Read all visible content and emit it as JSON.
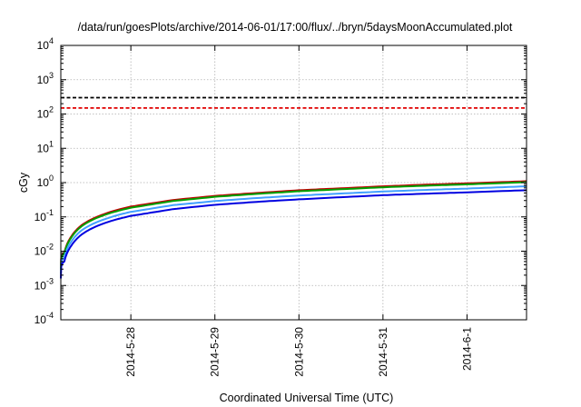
{
  "chart_data": {
    "type": "line",
    "title": "/data/run/goesPlots/archive/2014-06-01/17:00/flux/../bryn/5daysMoonAccumulated.plot",
    "xlabel": "Coordinated Universal Time (UTC)",
    "ylabel": "cGy",
    "y_scale": "log",
    "ylim": [
      0.0001,
      10000
    ],
    "y_ticks": [
      {
        "value": 0.0001,
        "base": "10",
        "exp": "-4"
      },
      {
        "value": 0.001,
        "base": "10",
        "exp": "-3"
      },
      {
        "value": 0.01,
        "base": "10",
        "exp": "-2"
      },
      {
        "value": 0.1,
        "base": "10",
        "exp": "-1"
      },
      {
        "value": 1,
        "base": "10",
        "exp": "0"
      },
      {
        "value": 10,
        "base": "10",
        "exp": "1"
      },
      {
        "value": 100,
        "base": "10",
        "exp": "2"
      },
      {
        "value": 1000,
        "base": "10",
        "exp": "3"
      },
      {
        "value": 10000,
        "base": "10",
        "exp": "4"
      }
    ],
    "xlim": [
      "2014-05-27 04:00",
      "2014-06-01 17:00"
    ],
    "x_ticks": [
      {
        "value": "2014-05-28 00:00",
        "label": "2014-5-28"
      },
      {
        "value": "2014-05-29 00:00",
        "label": "2014-5-29"
      },
      {
        "value": "2014-05-30 00:00",
        "label": "2014-5-30"
      },
      {
        "value": "2014-05-31 00:00",
        "label": "2014-5-31"
      },
      {
        "value": "2014-06-01 00:00",
        "label": "2014-6-1"
      }
    ],
    "grid": true,
    "thresholds": [
      {
        "value": 300,
        "color": "#000000",
        "style": "dashed"
      },
      {
        "value": 150,
        "color": "#e00000",
        "style": "dashed"
      }
    ],
    "series": [
      {
        "color": "#c00000",
        "x": [
          "2014-05-27 04:00",
          "2014-05-27 05:00",
          "2014-05-27 07:00",
          "2014-05-27 10:00",
          "2014-05-27 16:00",
          "2014-05-28 00:00",
          "2014-05-28 12:00",
          "2014-05-29 00:00",
          "2014-05-29 12:00",
          "2014-05-30 00:00",
          "2014-05-30 12:00",
          "2014-05-31 00:00",
          "2014-05-31 12:00",
          "2014-06-01 00:00",
          "2014-06-01 17:00"
        ],
        "values": [
          0.003,
          0.009,
          0.027,
          0.058,
          0.117,
          0.2,
          0.31,
          0.41,
          0.5,
          0.6,
          0.68,
          0.78,
          0.87,
          0.95,
          1.1
        ]
      },
      {
        "color": "#00a000",
        "x": [
          "2014-05-27 04:00",
          "2014-05-27 05:00",
          "2014-05-27 07:00",
          "2014-05-27 10:00",
          "2014-05-27 16:00",
          "2014-05-28 00:00",
          "2014-05-28 12:00",
          "2014-05-29 00:00",
          "2014-05-29 12:00",
          "2014-05-30 00:00",
          "2014-05-30 12:00",
          "2014-05-31 00:00",
          "2014-05-31 12:00",
          "2014-06-01 00:00",
          "2014-06-01 17:00"
        ],
        "values": [
          0.0028,
          0.0085,
          0.025,
          0.054,
          0.109,
          0.185,
          0.29,
          0.385,
          0.47,
          0.56,
          0.64,
          0.73,
          0.81,
          0.89,
          1.03
        ]
      },
      {
        "color": "#40a0ff",
        "x": [
          "2014-05-27 04:00",
          "2014-05-27 05:00",
          "2014-05-27 07:00",
          "2014-05-27 10:00",
          "2014-05-27 16:00",
          "2014-05-28 00:00",
          "2014-05-28 12:00",
          "2014-05-29 00:00",
          "2014-05-29 12:00",
          "2014-05-30 00:00",
          "2014-05-30 12:00",
          "2014-05-31 00:00",
          "2014-05-31 12:00",
          "2014-06-01 00:00",
          "2014-06-01 17:00"
        ],
        "values": [
          0.0022,
          0.0065,
          0.019,
          0.041,
          0.082,
          0.14,
          0.22,
          0.29,
          0.355,
          0.42,
          0.48,
          0.55,
          0.61,
          0.67,
          0.78
        ]
      },
      {
        "color": "#0000e0",
        "x": [
          "2014-05-27 04:00",
          "2014-05-27 05:00",
          "2014-05-27 07:00",
          "2014-05-27 10:00",
          "2014-05-27 16:00",
          "2014-05-28 00:00",
          "2014-05-28 12:00",
          "2014-05-29 00:00",
          "2014-05-29 12:00",
          "2014-05-30 00:00",
          "2014-05-30 12:00",
          "2014-05-31 00:00",
          "2014-05-31 12:00",
          "2014-06-01 00:00",
          "2014-06-01 17:00"
        ],
        "values": [
          0.0016,
          0.005,
          0.0145,
          0.031,
          0.063,
          0.107,
          0.168,
          0.225,
          0.275,
          0.325,
          0.375,
          0.43,
          0.475,
          0.52,
          0.6
        ]
      }
    ]
  }
}
